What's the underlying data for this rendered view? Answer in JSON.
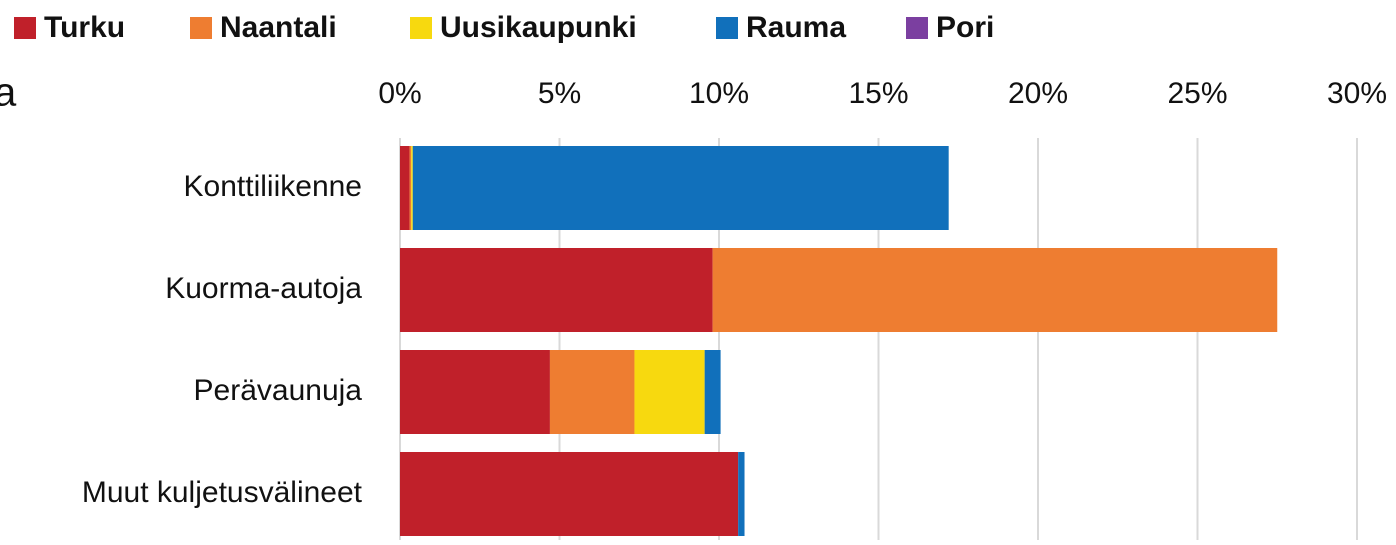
{
  "chart_data": {
    "type": "stacked-bar-horizontal",
    "title": "a",
    "categories": [
      "Konttiliikenne",
      "Kuorma-autoja",
      "Perävaunuja",
      "Muut kuljetusvälineet"
    ],
    "series": [
      {
        "name": "Turku",
        "color": "#c0202a",
        "values": [
          0.3,
          9.8,
          4.7,
          10.6
        ]
      },
      {
        "name": "Naantali",
        "color": "#ee7d31",
        "values": [
          0.05,
          17.7,
          2.65,
          0
        ]
      },
      {
        "name": "Uusikaupunki",
        "color": "#f7d90f",
        "values": [
          0.05,
          0,
          2.2,
          0
        ]
      },
      {
        "name": "Rauma",
        "color": "#1170bb",
        "values": [
          16.8,
          0,
          0.5,
          0.2
        ]
      },
      {
        "name": "Pori",
        "color": "#7b3fa0",
        "values": [
          0,
          0,
          0,
          0
        ]
      }
    ],
    "xlim": [
      0,
      30
    ],
    "xticks": [
      {
        "value": 0,
        "label": "0%"
      },
      {
        "value": 5,
        "label": "5%"
      },
      {
        "value": 10,
        "label": "10%"
      },
      {
        "value": 15,
        "label": "15%"
      },
      {
        "value": 20,
        "label": "20%"
      },
      {
        "value": 25,
        "label": "25%"
      },
      {
        "value": 30,
        "label": "30%"
      }
    ],
    "grid": true,
    "legend": "top"
  }
}
